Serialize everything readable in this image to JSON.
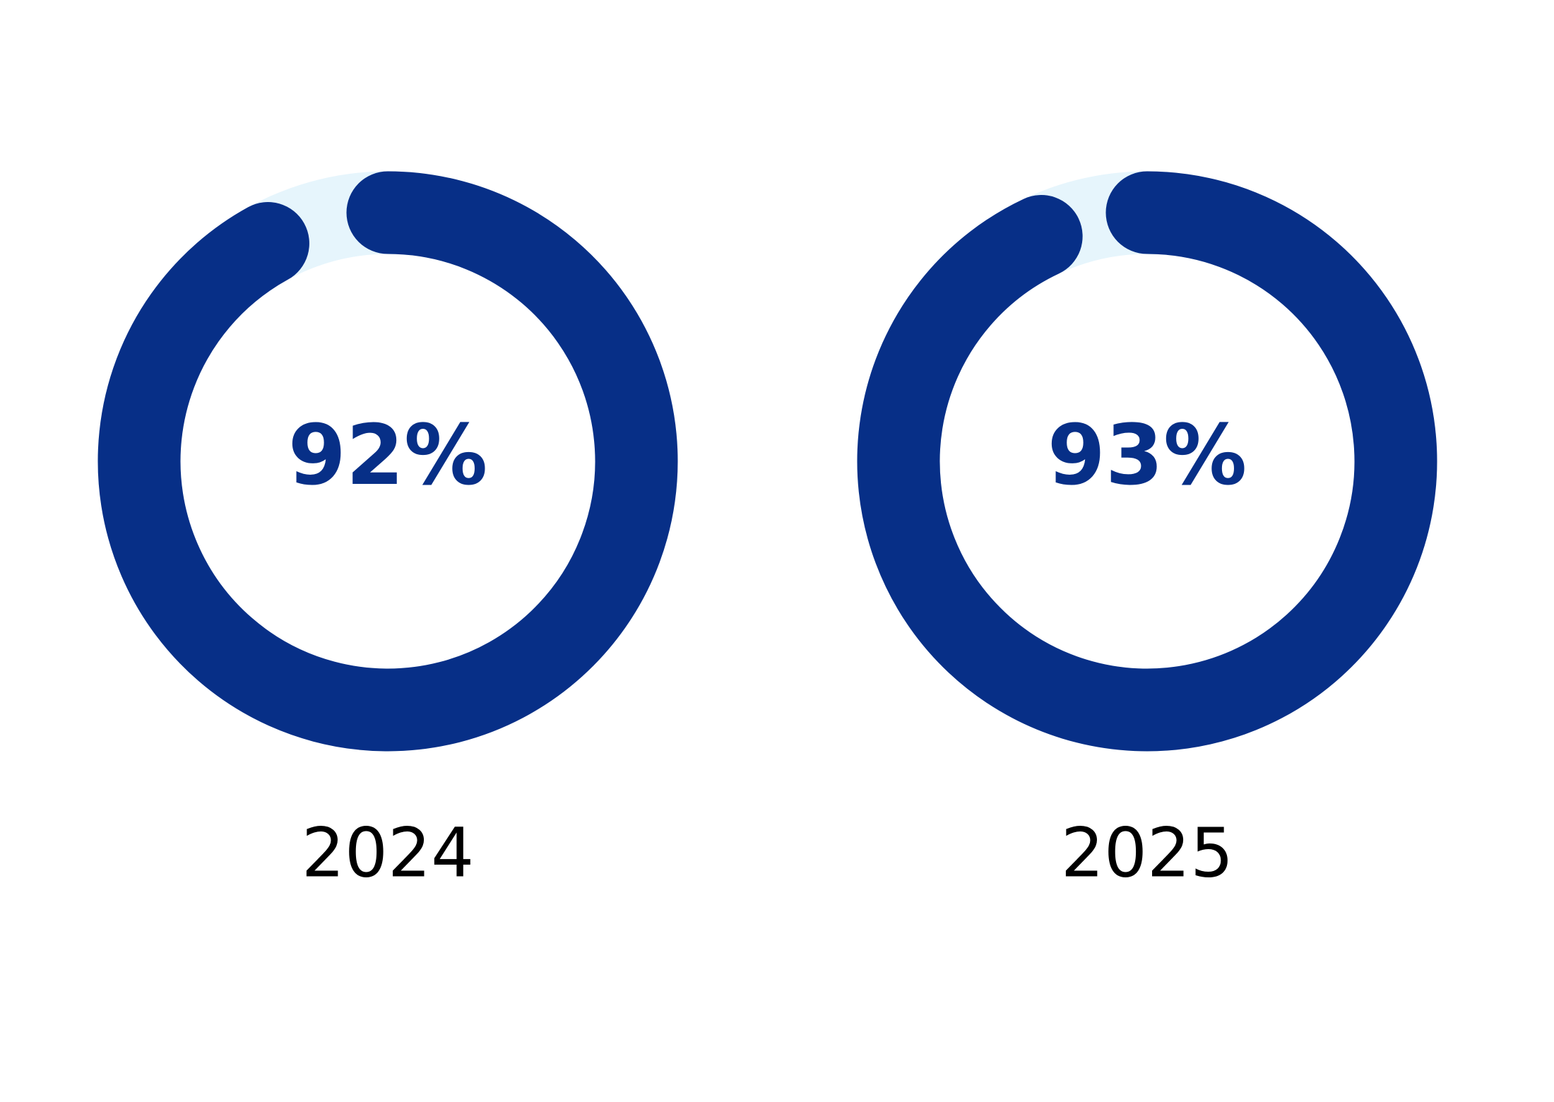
{
  "chart_data": [
    {
      "type": "donut",
      "categories": [
        "2024"
      ],
      "values": [
        92
      ],
      "value_labels": [
        "92%"
      ],
      "ylim": [
        0,
        100
      ],
      "color": "#072f87",
      "track_color": "#e6f5fc"
    },
    {
      "type": "donut",
      "categories": [
        "2025"
      ],
      "values": [
        93
      ],
      "value_labels": [
        "93%"
      ],
      "ylim": [
        0,
        100
      ],
      "color": "#072f87",
      "track_color": "#e6f5fc"
    }
  ]
}
